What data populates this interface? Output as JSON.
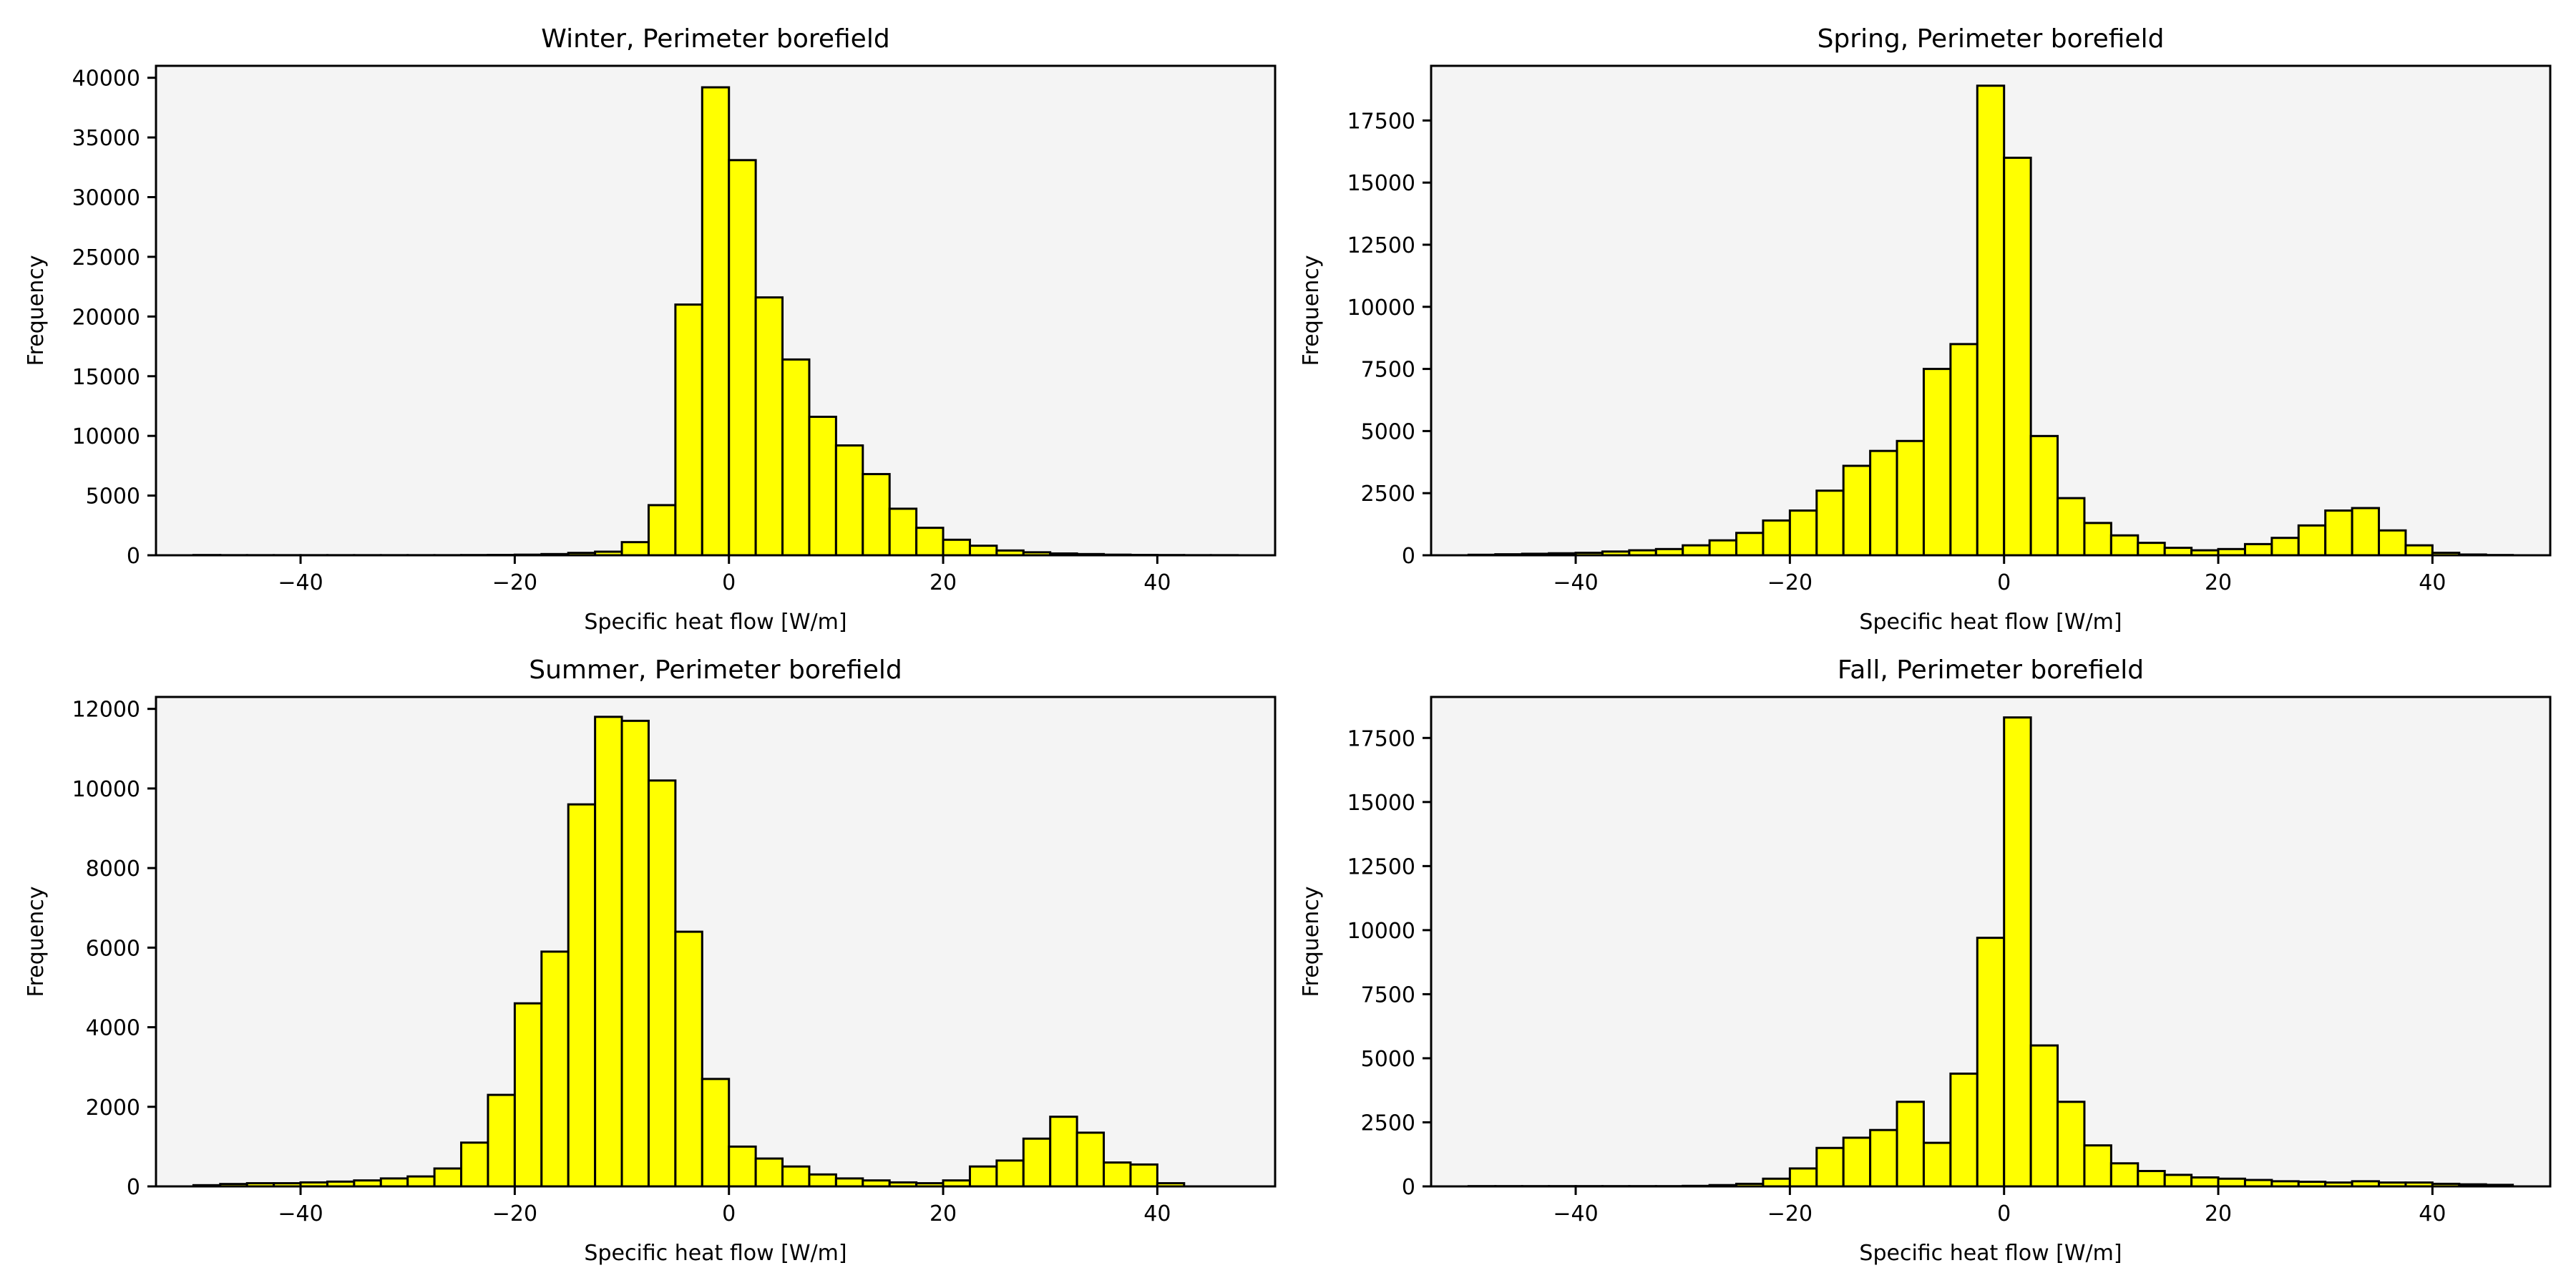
{
  "chart_data": [
    {
      "type": "bar",
      "title": "Winter, Perimeter borefield",
      "xlabel": "Specific heat flow [W/m]",
      "ylabel": "Frequency",
      "xlim": [
        -53.5,
        51
      ],
      "ylim": [
        0,
        41000
      ],
      "xticks": [
        -40,
        -20,
        0,
        20,
        40
      ],
      "xtick_labels": [
        "−40",
        "−20",
        "0",
        "20",
        "40"
      ],
      "yticks": [
        0,
        5000,
        10000,
        15000,
        20000,
        25000,
        30000,
        35000,
        40000
      ],
      "ytick_labels": [
        "0",
        "5000",
        "10000",
        "15000",
        "20000",
        "25000",
        "30000",
        "35000",
        "40000"
      ],
      "bin_start": -50,
      "bin_width": 2.5,
      "values": [
        20,
        10,
        10,
        10,
        10,
        10,
        10,
        10,
        10,
        10,
        20,
        30,
        50,
        100,
        200,
        300,
        1100,
        4200,
        21000,
        39200,
        33100,
        21600,
        16400,
        11600,
        9200,
        6800,
        3900,
        2300,
        1300,
        800,
        400,
        250,
        150,
        100,
        50,
        30,
        20,
        10,
        10
      ]
    },
    {
      "type": "bar",
      "title": "Spring, Perimeter borefield",
      "xlabel": "Specific heat flow [W/m]",
      "ylabel": "Frequency",
      "xlim": [
        -53.5,
        51
      ],
      "ylim": [
        0,
        19700
      ],
      "xticks": [
        -40,
        -20,
        0,
        20,
        40
      ],
      "xtick_labels": [
        "−40",
        "−20",
        "0",
        "20",
        "40"
      ],
      "yticks": [
        0,
        2500,
        5000,
        7500,
        10000,
        12500,
        15000,
        17500
      ],
      "ytick_labels": [
        "0",
        "2500",
        "5000",
        "7500",
        "10000",
        "12500",
        "15000",
        "17500"
      ],
      "bin_start": -50,
      "bin_width": 2.5,
      "values": [
        20,
        40,
        60,
        80,
        100,
        150,
        200,
        250,
        400,
        600,
        900,
        1400,
        1800,
        2600,
        3600,
        4200,
        4600,
        7500,
        8500,
        18900,
        16000,
        4800,
        2300,
        1300,
        800,
        500,
        300,
        200,
        250,
        450,
        700,
        1200,
        1800,
        1900,
        1000,
        400,
        100,
        30,
        10
      ]
    },
    {
      "type": "bar",
      "title": "Summer, Perimeter borefield",
      "xlabel": "Specific heat flow [W/m]",
      "ylabel": "Frequency",
      "xlim": [
        -53.5,
        51
      ],
      "ylim": [
        0,
        12300
      ],
      "xticks": [
        -40,
        -20,
        0,
        20,
        40
      ],
      "xtick_labels": [
        "−40",
        "−20",
        "0",
        "20",
        "40"
      ],
      "yticks": [
        0,
        2000,
        4000,
        6000,
        8000,
        10000,
        12000
      ],
      "ytick_labels": [
        "0",
        "2000",
        "4000",
        "6000",
        "8000",
        "10000",
        "12000"
      ],
      "bin_start": -50,
      "bin_width": 2.5,
      "values": [
        30,
        60,
        80,
        80,
        100,
        120,
        150,
        200,
        250,
        450,
        1100,
        2300,
        4600,
        5900,
        9600,
        11800,
        11700,
        10200,
        6400,
        2700,
        1000,
        700,
        500,
        300,
        200,
        150,
        100,
        80,
        150,
        500,
        650,
        1200,
        1750,
        1350,
        600,
        550,
        80
      ]
    },
    {
      "type": "bar",
      "title": "Fall, Perimeter borefield",
      "xlabel": "Specific heat flow [W/m]",
      "ylabel": "Frequency",
      "xlim": [
        -53.5,
        51
      ],
      "ylim": [
        0,
        19100
      ],
      "xticks": [
        -40,
        -20,
        0,
        20,
        40
      ],
      "xtick_labels": [
        "−40",
        "−20",
        "0",
        "20",
        "40"
      ],
      "yticks": [
        0,
        2500,
        5000,
        7500,
        10000,
        12500,
        15000,
        17500
      ],
      "ytick_labels": [
        "0",
        "2500",
        "5000",
        "7500",
        "10000",
        "12500",
        "15000",
        "17500"
      ],
      "bin_start": -50,
      "bin_width": 2.5,
      "values": [
        10,
        10,
        10,
        10,
        10,
        10,
        10,
        10,
        20,
        50,
        100,
        300,
        700,
        1500,
        1900,
        2200,
        3300,
        1700,
        4400,
        9700,
        18300,
        5500,
        3300,
        1600,
        900,
        600,
        450,
        350,
        300,
        250,
        200,
        180,
        150,
        200,
        150,
        150,
        100,
        80,
        60
      ]
    }
  ]
}
